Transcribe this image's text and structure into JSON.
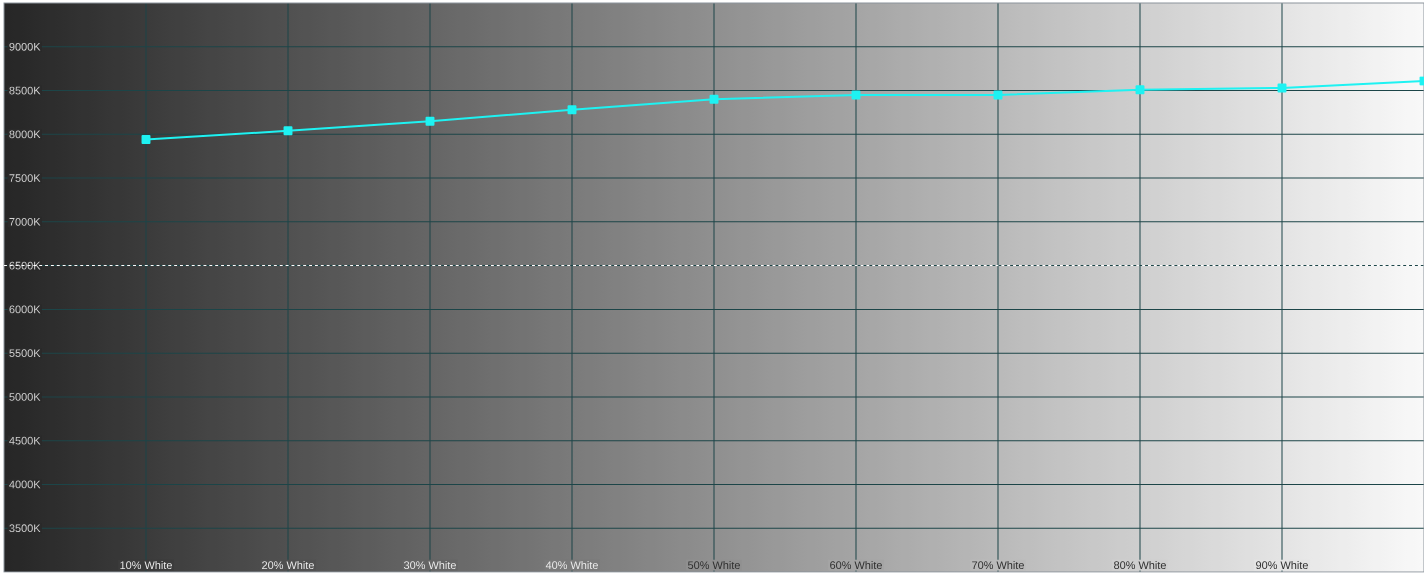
{
  "chart_data": {
    "type": "line",
    "x": [
      10,
      20,
      30,
      40,
      50,
      60,
      70,
      80,
      90,
      100
    ],
    "series": [
      {
        "color": "#1ef2f2",
        "values": [
          7940,
          8040,
          8150,
          8280,
          8400,
          8450,
          8450,
          8510,
          8530,
          8610
        ]
      }
    ],
    "xlim": [
      0,
      100
    ],
    "ylim": [
      3000,
      9500
    ],
    "xticks": [
      {
        "value": 10,
        "label": "10% White"
      },
      {
        "value": 20,
        "label": "20% White"
      },
      {
        "value": 30,
        "label": "30% White"
      },
      {
        "value": 40,
        "label": "40% White"
      },
      {
        "value": 50,
        "label": "50% White"
      },
      {
        "value": 60,
        "label": "60% White"
      },
      {
        "value": 70,
        "label": "70% White"
      },
      {
        "value": 80,
        "label": "80% White"
      },
      {
        "value": 90,
        "label": "90% White"
      }
    ],
    "yticks": [
      {
        "value": 3500,
        "label": "3500K"
      },
      {
        "value": 4000,
        "label": "4000K"
      },
      {
        "value": 4500,
        "label": "4500K"
      },
      {
        "value": 5000,
        "label": "5000K"
      },
      {
        "value": 5500,
        "label": "5500K"
      },
      {
        "value": 6000,
        "label": "6000K"
      },
      {
        "value": 6500,
        "label": "6500K"
      },
      {
        "value": 7000,
        "label": "7000K"
      },
      {
        "value": 7500,
        "label": "7500K"
      },
      {
        "value": 8000,
        "label": "8000K"
      },
      {
        "value": 8500,
        "label": "8500K"
      },
      {
        "value": 9000,
        "label": "9000K"
      }
    ],
    "grid": true,
    "marker": "square",
    "line_style": "solid",
    "ref_lines": [
      {
        "axis": "y",
        "value": 6500,
        "color": "#ffffff",
        "line_style": "dashed"
      }
    ]
  }
}
